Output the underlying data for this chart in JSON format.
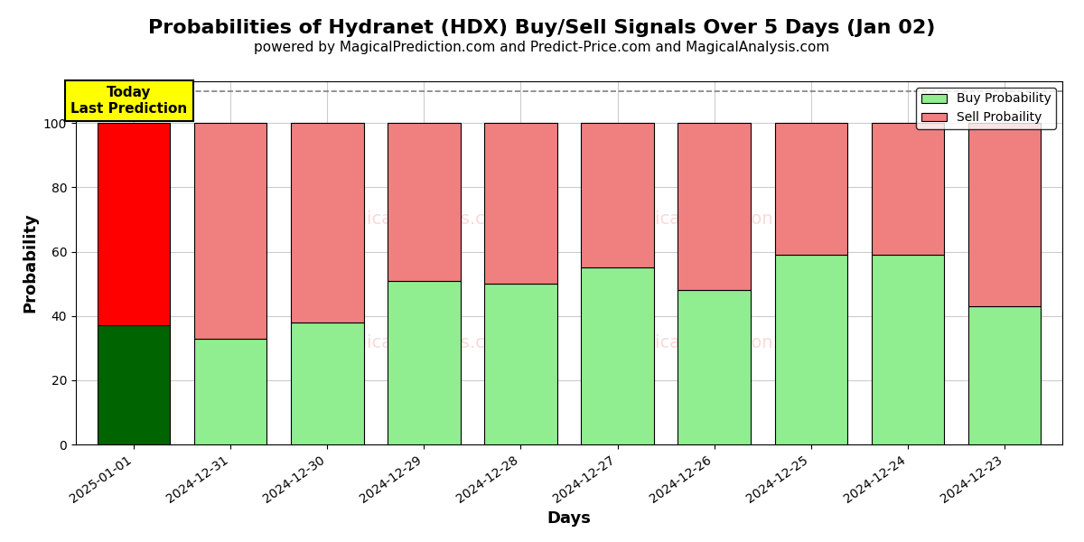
{
  "title": "Probabilities of Hydranet (HDX) Buy/Sell Signals Over 5 Days (Jan 02)",
  "subtitle": "powered by MagicalPrediction.com and Predict-Price.com and MagicalAnalysis.com",
  "xlabel": "Days",
  "ylabel": "Probability",
  "categories": [
    "2025-01-01",
    "2024-12-31",
    "2024-12-30",
    "2024-12-29",
    "2024-12-28",
    "2024-12-27",
    "2024-12-26",
    "2024-12-25",
    "2024-12-24",
    "2024-12-23"
  ],
  "buy_values": [
    37,
    33,
    38,
    51,
    50,
    55,
    48,
    59,
    59,
    43
  ],
  "sell_values": [
    63,
    67,
    62,
    49,
    50,
    45,
    52,
    41,
    41,
    57
  ],
  "buy_colors": [
    "#006400",
    "#90EE90",
    "#90EE90",
    "#90EE90",
    "#90EE90",
    "#90EE90",
    "#90EE90",
    "#90EE90",
    "#90EE90",
    "#90EE90"
  ],
  "sell_colors": [
    "#FF0000",
    "#F08080",
    "#F08080",
    "#F08080",
    "#F08080",
    "#F08080",
    "#F08080",
    "#F08080",
    "#F08080",
    "#F08080"
  ],
  "today_label": "Today\nLast Prediction",
  "legend_buy": "Buy Probability",
  "legend_sell": "Sell Probaility",
  "ylim_max": 113,
  "yticks": [
    0,
    20,
    40,
    60,
    80,
    100
  ],
  "dashed_line_y": 110,
  "bar_edge_color": "#000000",
  "bar_linewidth": 0.8,
  "background_color": "#ffffff",
  "grid_color": "#cccccc",
  "title_fontsize": 16,
  "subtitle_fontsize": 11,
  "axis_label_fontsize": 13,
  "tick_fontsize": 10,
  "legend_fontsize": 10,
  "watermark_color": "#F08080",
  "watermark_alpha": 0.3
}
